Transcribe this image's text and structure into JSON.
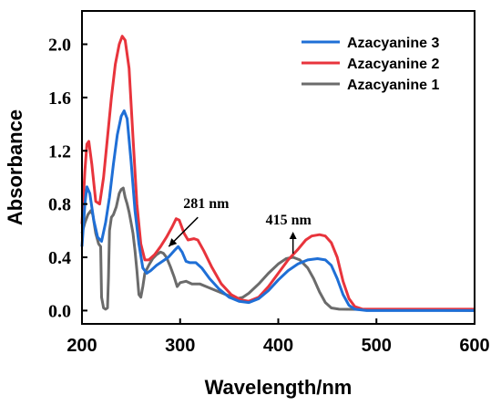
{
  "chart_data": {
    "type": "line",
    "title": "",
    "xlabel": "Wavelength/nm",
    "ylabel": "Absorbance",
    "xlim": [
      200,
      600
    ],
    "ylim": [
      -0.1,
      2.25
    ],
    "xticks": [
      200,
      300,
      400,
      500,
      600
    ],
    "xtick_labels": [
      "200",
      "300",
      "400",
      "500",
      "600"
    ],
    "yticks": [
      0.0,
      0.4,
      0.8,
      1.2,
      1.6,
      2.0
    ],
    "ytick_labels": [
      "0.0",
      "0.4",
      "0.8",
      "1.2",
      "1.6",
      "2.0"
    ],
    "grid": false,
    "legend_position": "top-right",
    "series": [
      {
        "name": "Azacyanine 3",
        "color": "#1f6fd6",
        "points": [
          [
            200,
            0.48
          ],
          [
            203,
            0.8
          ],
          [
            205,
            0.93
          ],
          [
            208,
            0.88
          ],
          [
            212,
            0.68
          ],
          [
            216,
            0.55
          ],
          [
            220,
            0.52
          ],
          [
            224,
            0.66
          ],
          [
            228,
            0.85
          ],
          [
            232,
            1.1
          ],
          [
            236,
            1.32
          ],
          [
            240,
            1.46
          ],
          [
            243,
            1.5
          ],
          [
            246,
            1.44
          ],
          [
            250,
            1.12
          ],
          [
            254,
            0.75
          ],
          [
            258,
            0.5
          ],
          [
            262,
            0.32
          ],
          [
            266,
            0.28
          ],
          [
            270,
            0.3
          ],
          [
            276,
            0.34
          ],
          [
            282,
            0.37
          ],
          [
            288,
            0.4
          ],
          [
            294,
            0.45
          ],
          [
            298,
            0.48
          ],
          [
            302,
            0.44
          ],
          [
            306,
            0.37
          ],
          [
            310,
            0.36
          ],
          [
            316,
            0.36
          ],
          [
            322,
            0.32
          ],
          [
            330,
            0.24
          ],
          [
            340,
            0.16
          ],
          [
            350,
            0.1
          ],
          [
            360,
            0.07
          ],
          [
            370,
            0.06
          ],
          [
            380,
            0.09
          ],
          [
            390,
            0.15
          ],
          [
            400,
            0.23
          ],
          [
            410,
            0.3
          ],
          [
            420,
            0.35
          ],
          [
            430,
            0.38
          ],
          [
            440,
            0.39
          ],
          [
            448,
            0.38
          ],
          [
            454,
            0.34
          ],
          [
            460,
            0.24
          ],
          [
            466,
            0.12
          ],
          [
            472,
            0.04
          ],
          [
            478,
            0.01
          ],
          [
            490,
            0.0
          ],
          [
            600,
            0.0
          ]
        ]
      },
      {
        "name": "Azacyanine 2",
        "color": "#e8343c",
        "points": [
          [
            200,
            0.65
          ],
          [
            203,
            1.05
          ],
          [
            205,
            1.25
          ],
          [
            207,
            1.27
          ],
          [
            210,
            1.1
          ],
          [
            214,
            0.82
          ],
          [
            218,
            0.8
          ],
          [
            222,
            1.0
          ],
          [
            226,
            1.3
          ],
          [
            230,
            1.6
          ],
          [
            234,
            1.85
          ],
          [
            238,
            2.0
          ],
          [
            241,
            2.06
          ],
          [
            244,
            2.03
          ],
          [
            248,
            1.82
          ],
          [
            252,
            1.3
          ],
          [
            256,
            0.8
          ],
          [
            260,
            0.5
          ],
          [
            264,
            0.38
          ],
          [
            268,
            0.38
          ],
          [
            274,
            0.42
          ],
          [
            280,
            0.48
          ],
          [
            286,
            0.55
          ],
          [
            292,
            0.63
          ],
          [
            296,
            0.69
          ],
          [
            299,
            0.68
          ],
          [
            304,
            0.58
          ],
          [
            308,
            0.53
          ],
          [
            314,
            0.54
          ],
          [
            318,
            0.53
          ],
          [
            324,
            0.45
          ],
          [
            332,
            0.33
          ],
          [
            342,
            0.2
          ],
          [
            352,
            0.12
          ],
          [
            362,
            0.08
          ],
          [
            370,
            0.07
          ],
          [
            380,
            0.1
          ],
          [
            390,
            0.18
          ],
          [
            400,
            0.28
          ],
          [
            410,
            0.38
          ],
          [
            420,
            0.46
          ],
          [
            428,
            0.53
          ],
          [
            434,
            0.56
          ],
          [
            442,
            0.57
          ],
          [
            448,
            0.56
          ],
          [
            454,
            0.51
          ],
          [
            460,
            0.4
          ],
          [
            466,
            0.22
          ],
          [
            472,
            0.09
          ],
          [
            478,
            0.03
          ],
          [
            486,
            0.01
          ],
          [
            600,
            0.01
          ]
        ]
      },
      {
        "name": "Azacyanine 1",
        "color": "#6b6b6b",
        "points": [
          [
            200,
            0.58
          ],
          [
            203,
            0.66
          ],
          [
            206,
            0.72
          ],
          [
            209,
            0.75
          ],
          [
            211,
            0.72
          ],
          [
            214,
            0.58
          ],
          [
            217,
            0.5
          ],
          [
            219,
            0.48
          ],
          [
            220,
            0.1
          ],
          [
            222,
            0.02
          ],
          [
            224,
            0.01
          ],
          [
            226,
            0.02
          ],
          [
            227,
            0.25
          ],
          [
            228,
            0.6
          ],
          [
            230,
            0.7
          ],
          [
            232,
            0.72
          ],
          [
            235,
            0.78
          ],
          [
            238,
            0.88
          ],
          [
            240,
            0.91
          ],
          [
            242,
            0.92
          ],
          [
            244,
            0.85
          ],
          [
            246,
            0.8
          ],
          [
            248,
            0.74
          ],
          [
            250,
            0.66
          ],
          [
            252,
            0.58
          ],
          [
            254,
            0.45
          ],
          [
            256,
            0.3
          ],
          [
            258,
            0.12
          ],
          [
            260,
            0.1
          ],
          [
            262,
            0.18
          ],
          [
            264,
            0.28
          ],
          [
            268,
            0.34
          ],
          [
            272,
            0.39
          ],
          [
            276,
            0.42
          ],
          [
            280,
            0.44
          ],
          [
            283,
            0.43
          ],
          [
            286,
            0.4
          ],
          [
            290,
            0.33
          ],
          [
            294,
            0.25
          ],
          [
            297,
            0.18
          ],
          [
            300,
            0.21
          ],
          [
            306,
            0.22
          ],
          [
            312,
            0.2
          ],
          [
            320,
            0.2
          ],
          [
            330,
            0.17
          ],
          [
            340,
            0.14
          ],
          [
            350,
            0.11
          ],
          [
            358,
            0.09
          ],
          [
            364,
            0.1
          ],
          [
            370,
            0.13
          ],
          [
            380,
            0.2
          ],
          [
            390,
            0.28
          ],
          [
            400,
            0.35
          ],
          [
            408,
            0.39
          ],
          [
            415,
            0.4
          ],
          [
            422,
            0.38
          ],
          [
            430,
            0.32
          ],
          [
            436,
            0.24
          ],
          [
            442,
            0.14
          ],
          [
            448,
            0.06
          ],
          [
            454,
            0.02
          ],
          [
            462,
            0.01
          ],
          [
            600,
            0.0
          ]
        ]
      }
    ],
    "annotations": [
      {
        "label": "281 nm",
        "x": 281,
        "y": 0.44
      },
      {
        "label": "415 nm",
        "x": 415,
        "y": 0.4
      }
    ]
  }
}
